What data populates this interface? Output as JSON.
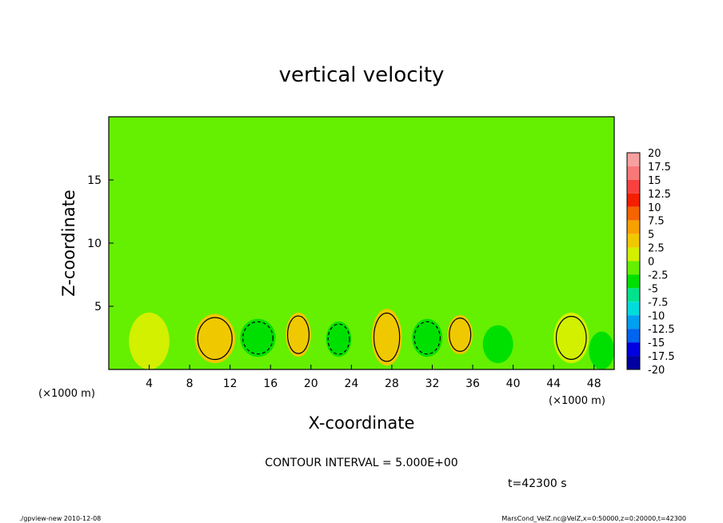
{
  "chart_data": {
    "type": "heatmap",
    "title": "vertical velocity",
    "xlabel": "X-coordinate",
    "ylabel": "Z-coordinate",
    "x_unit": "(×1000 m)",
    "xlim": [
      0,
      50
    ],
    "ylim": [
      0,
      20
    ],
    "x_ticks": [
      "4",
      "8",
      "12",
      "16",
      "20",
      "24",
      "28",
      "32",
      "36",
      "40",
      "44",
      "48"
    ],
    "y_ticks": [
      "5",
      "10",
      "15"
    ],
    "contour_interval_text": "CONTOUR INTERVAL = 5.000E+00",
    "time_text": "t=42300 s",
    "colorbar": {
      "labels": [
        "20",
        "17.5",
        "15",
        "12.5",
        "10",
        "7.5",
        "5",
        "2.5",
        "0",
        "-2.5",
        "-5",
        "-7.5",
        "-10",
        "-12.5",
        "-15",
        "-17.5",
        "-20"
      ],
      "colors": [
        "#f7a0a0",
        "#f87878",
        "#f84040",
        "#f41e00",
        "#f46400",
        "#f8a000",
        "#f0c800",
        "#d2f000",
        "#64f000",
        "#00e000",
        "#00e28c",
        "#00dcdc",
        "#00a0f0",
        "#0064f0",
        "#0000e0",
        "#0000a0",
        "#6a28c0"
      ]
    },
    "cells": [
      {
        "x0": 2,
        "x1": 6,
        "z0": 0,
        "z1": 4.5,
        "value": 1.5
      },
      {
        "x0": 8.5,
        "x1": 12.5,
        "z0": 0.5,
        "z1": 4.4,
        "value": 4
      },
      {
        "x0": 13,
        "x1": 16.5,
        "z0": 1,
        "z1": 4,
        "value": -3
      },
      {
        "x0": 17.5,
        "x1": 20,
        "z0": 1,
        "z1": 4.5,
        "value": 4
      },
      {
        "x0": 21.5,
        "x1": 24,
        "z0": 1,
        "z1": 3.8,
        "value": -2.5
      },
      {
        "x0": 26,
        "x1": 29,
        "z0": 0.3,
        "z1": 4.8,
        "value": 6
      },
      {
        "x0": 30,
        "x1": 33,
        "z0": 1,
        "z1": 4,
        "value": -3
      },
      {
        "x0": 33.5,
        "x1": 36,
        "z0": 1.2,
        "z1": 4.3,
        "value": 4
      },
      {
        "x0": 37,
        "x1": 40,
        "z0": 0.5,
        "z1": 3.5,
        "value": -1.5
      },
      {
        "x0": 44,
        "x1": 47.5,
        "z0": 0.5,
        "z1": 4.5,
        "value": 3
      },
      {
        "x0": 47.5,
        "x1": 50,
        "z0": 0,
        "z1": 3,
        "value": -1.5
      }
    ]
  },
  "footer": {
    "left": "./gpview-new   2010-12-08",
    "right": "MarsCond_VelZ.nc@VelZ,x=0:50000,z=0:20000,t=42300"
  }
}
